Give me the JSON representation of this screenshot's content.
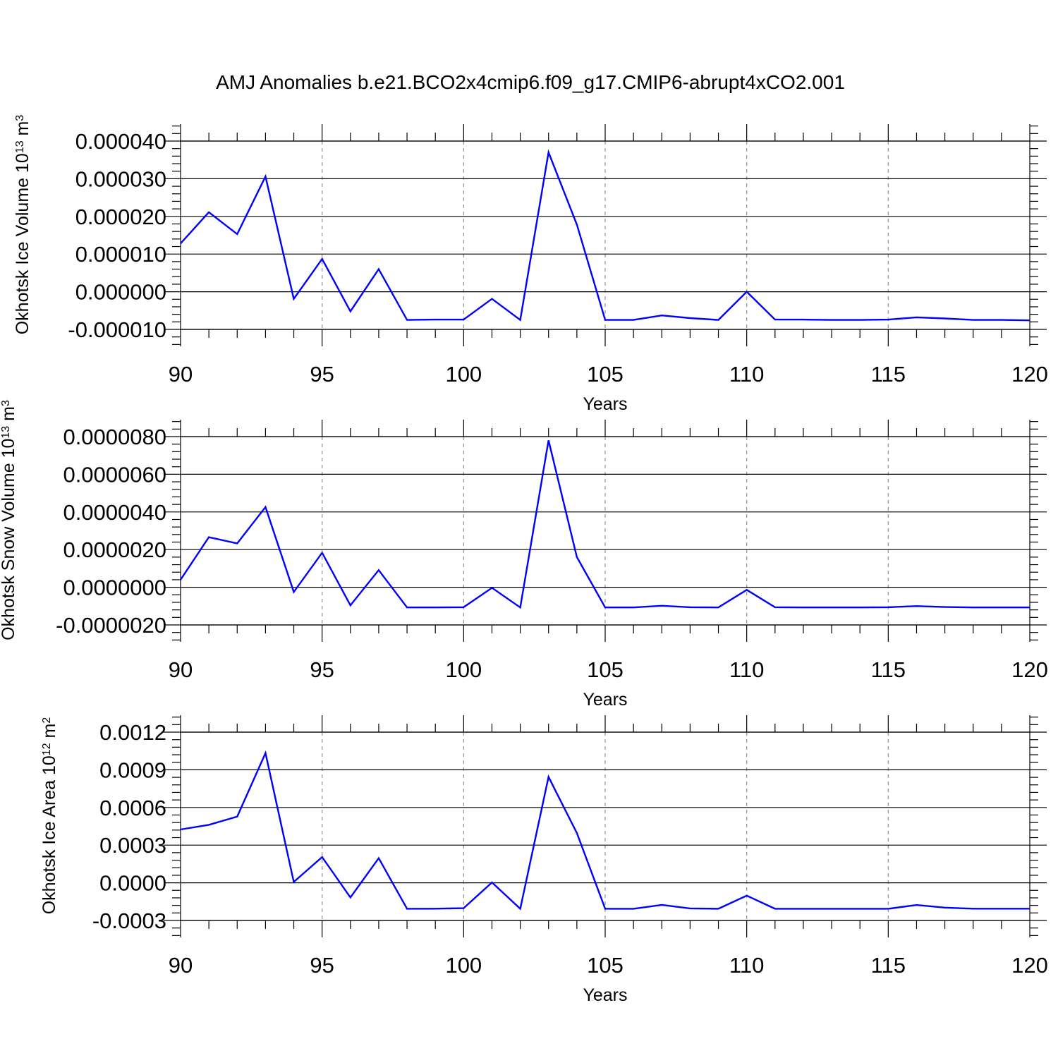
{
  "title": "AMJ Anomalies b.e21.BCO2x4cmip6.f09_g17.CMIP6-abrupt4xCO2.001",
  "colors": {
    "line": "#0000ff",
    "grid": "#999999"
  },
  "chart_data": [
    {
      "type": "line",
      "ylabel": "Okhotsk Ice Volume 10",
      "ylabel_exp": "13",
      "ylabel_unit": " m",
      "ylabel_unit_exp": "3",
      "xlabel": "Years",
      "xlim": [
        90,
        120
      ],
      "ylim": [
        -1e-05,
        4e-05
      ],
      "xticks": [
        90,
        95,
        100,
        105,
        110,
        115,
        120
      ],
      "xtick_labels": [
        "90",
        "95",
        "100",
        "105",
        "110",
        "115",
        "120"
      ],
      "yticks": [
        -1e-05,
        0.0,
        1e-05,
        2e-05,
        3e-05,
        4e-05
      ],
      "ytick_labels": [
        "-0.000010",
        "0.000000",
        "0.000010",
        "0.000020",
        "0.000030",
        "0.000040"
      ],
      "grid": "vertical-dashed",
      "x": [
        90,
        91,
        92,
        93,
        94,
        95,
        96,
        97,
        98,
        99,
        100,
        101,
        102,
        103,
        104,
        105,
        106,
        107,
        108,
        109,
        110,
        111,
        112,
        113,
        114,
        115,
        116,
        117,
        118,
        119,
        120
      ],
      "values": [
        1.28e-05,
        2.11e-05,
        1.53e-05,
        3.06e-05,
        -1.9e-06,
        8.7e-06,
        -5.2e-06,
        6e-06,
        -7.5e-06,
        -7.4e-06,
        -7.4e-06,
        -1.9e-06,
        -7.5e-06,
        3.7e-05,
        1.78e-05,
        -7.5e-06,
        -7.5e-06,
        -6.3e-06,
        -7e-06,
        -7.5e-06,
        0.0,
        -7.4e-06,
        -7.4e-06,
        -7.5e-06,
        -7.5e-06,
        -7.4e-06,
        -6.8e-06,
        -7.1e-06,
        -7.5e-06,
        -7.5e-06,
        -7.6e-06
      ]
    },
    {
      "type": "line",
      "ylabel": "Okhotsk Snow Volume 10",
      "ylabel_exp": "13",
      "ylabel_unit": " m",
      "ylabel_unit_exp": "3",
      "xlabel": "Years",
      "xlim": [
        90,
        120
      ],
      "ylim": [
        -2e-06,
        8e-06
      ],
      "xticks": [
        90,
        95,
        100,
        105,
        110,
        115,
        120
      ],
      "xtick_labels": [
        "90",
        "95",
        "100",
        "105",
        "110",
        "115",
        "120"
      ],
      "yticks": [
        -2e-06,
        0.0,
        2e-06,
        4e-06,
        6e-06,
        8e-06
      ],
      "ytick_labels": [
        "-0.0000020",
        "0.0000000",
        "0.0000020",
        "0.0000040",
        "0.0000060",
        "0.0000080"
      ],
      "grid": "vertical-dashed",
      "x": [
        90,
        91,
        92,
        93,
        94,
        95,
        96,
        97,
        98,
        99,
        100,
        101,
        102,
        103,
        104,
        105,
        106,
        107,
        108,
        109,
        110,
        111,
        112,
        113,
        114,
        115,
        116,
        117,
        118,
        119,
        120
      ],
      "values": [
        4e-07,
        2.66e-06,
        2.33e-06,
        4.26e-06,
        -2.5e-07,
        1.83e-06,
        -9.6e-07,
        9.1e-07,
        -1.07e-06,
        -1.07e-06,
        -1.06e-06,
        -3e-08,
        -1.07e-06,
        7.8e-06,
        1.6e-06,
        -1.07e-06,
        -1.07e-06,
        -9.8e-07,
        -1.06e-06,
        -1.07e-06,
        -1.4e-07,
        -1.06e-06,
        -1.07e-06,
        -1.07e-06,
        -1.07e-06,
        -1.06e-06,
        -1e-06,
        -1.05e-06,
        -1.07e-06,
        -1.07e-06,
        -1.07e-06
      ]
    },
    {
      "type": "line",
      "ylabel": "Okhotsk Ice Area 10",
      "ylabel_exp": "12",
      "ylabel_unit": " m",
      "ylabel_unit_exp": "2",
      "xlabel": "Years",
      "xlim": [
        90,
        120
      ],
      "ylim": [
        -0.0003,
        0.0012
      ],
      "xticks": [
        90,
        95,
        100,
        105,
        110,
        115,
        120
      ],
      "xtick_labels": [
        "90",
        "95",
        "100",
        "105",
        "110",
        "115",
        "120"
      ],
      "yticks": [
        -0.0003,
        0.0,
        0.0003,
        0.0006,
        0.0009,
        0.0012
      ],
      "ytick_labels": [
        "-0.0003",
        "0.0000",
        "0.0003",
        "0.0006",
        "0.0009",
        "0.0012"
      ],
      "grid": "vertical-dashed",
      "x": [
        90,
        91,
        92,
        93,
        94,
        95,
        96,
        97,
        98,
        99,
        100,
        101,
        102,
        103,
        104,
        105,
        106,
        107,
        108,
        109,
        110,
        111,
        112,
        113,
        114,
        115,
        116,
        117,
        118,
        119,
        120
      ],
      "values": [
        0.000425,
        0.000462,
        0.000527,
        0.001033,
        7e-06,
        0.000205,
        -0.000117,
        0.000196,
        -0.000207,
        -0.000206,
        -0.000202,
        3e-06,
        -0.000207,
        0.000843,
        0.000396,
        -0.000207,
        -0.000207,
        -0.000176,
        -0.000204,
        -0.000207,
        -0.000102,
        -0.000207,
        -0.000207,
        -0.000207,
        -0.000207,
        -0.000207,
        -0.000177,
        -0.000198,
        -0.000206,
        -0.000206,
        -0.000206
      ]
    }
  ]
}
